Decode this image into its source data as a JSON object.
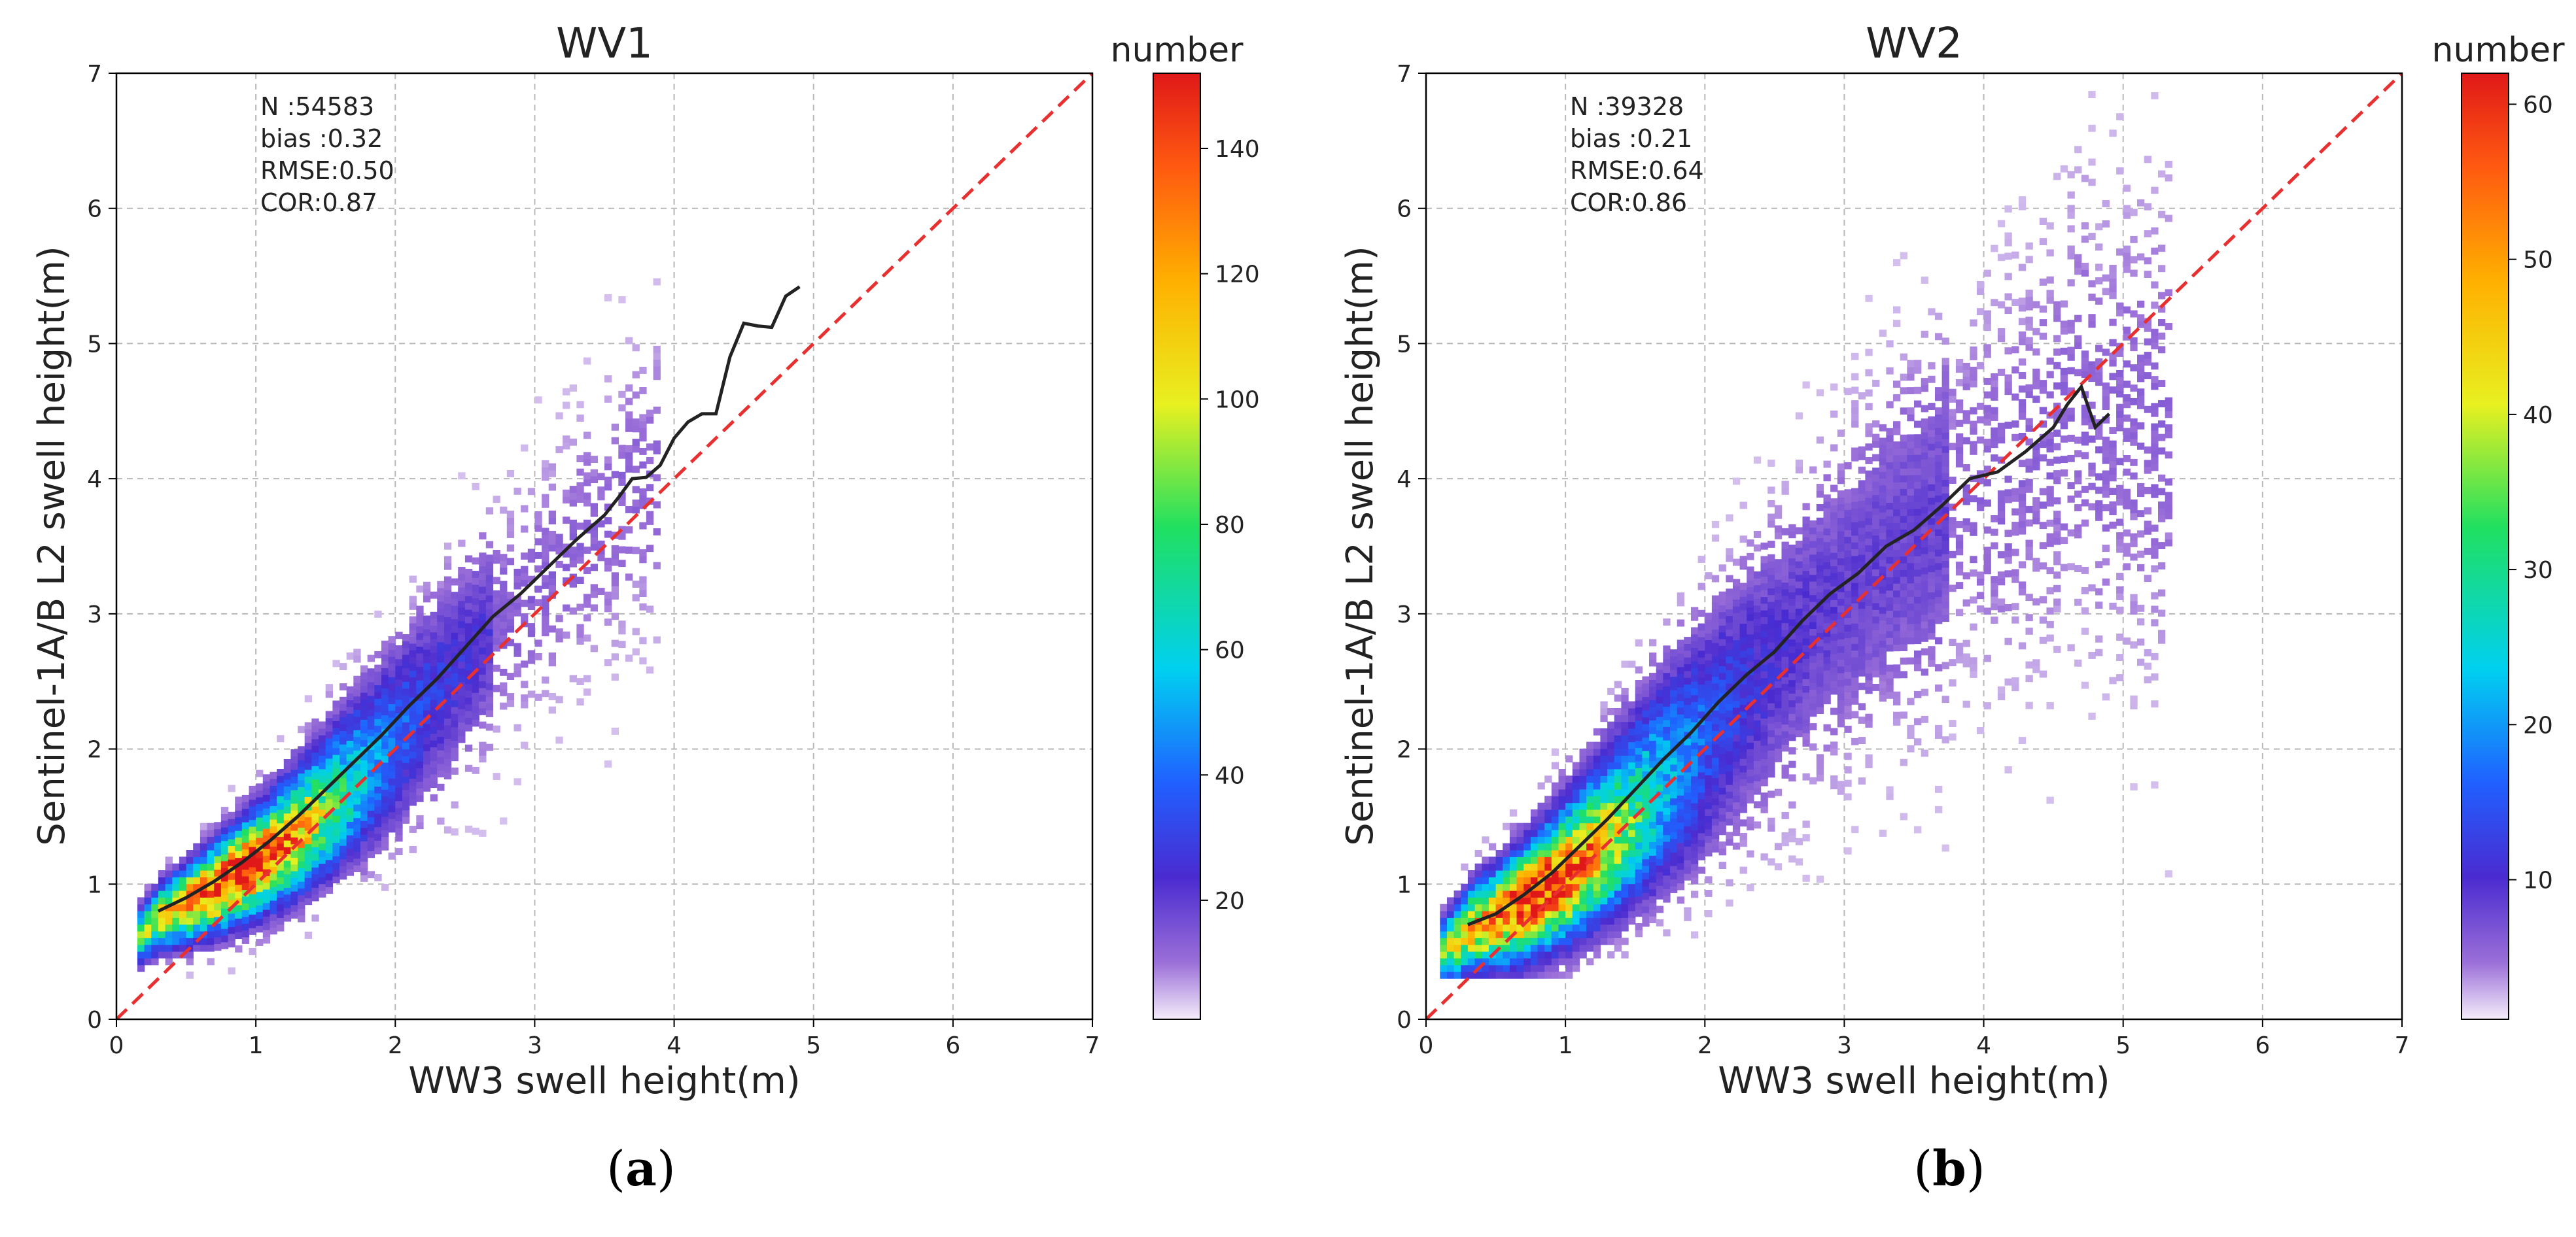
{
  "chart_data": [
    {
      "id": "a",
      "type": "heatmap",
      "title": "WV1",
      "xlabel": "WW3 swell height(m)",
      "ylabel": "Sentinel-1A/B L2 swell height(m)",
      "xlim": [
        0,
        7
      ],
      "ylim": [
        0,
        7
      ],
      "xticks": [
        "0",
        "1",
        "2",
        "3",
        "4",
        "5",
        "6",
        "7"
      ],
      "yticks": [
        "0",
        "1",
        "2",
        "3",
        "4",
        "5",
        "6",
        "7"
      ],
      "grid": true,
      "stats": [
        "N :54583",
        "bias :0.32",
        "RMSE:0.50",
        "COR:0.87"
      ],
      "colorbar": {
        "label": "number",
        "vmin": 1,
        "vmax": 152,
        "ticks": [
          20,
          40,
          60,
          80,
          100,
          120,
          140
        ],
        "tick_labels": [
          "20",
          "40",
          "60",
          "80",
          "100",
          "120",
          "140"
        ]
      },
      "identity_line": {
        "x": [
          0,
          7
        ],
        "y": [
          0,
          7
        ],
        "style": "red-dashed"
      },
      "density_model": {
        "x_range": [
          0.15,
          3.85
        ],
        "spread_base": 0.1,
        "spread_slope": 0.14,
        "peak_x": 0.85,
        "peak_y": 1.08,
        "peak_value": 150
      },
      "mean_curve": {
        "x": [
          0.3,
          0.5,
          0.7,
          0.9,
          1.1,
          1.3,
          1.5,
          1.7,
          1.9,
          2.1,
          2.3,
          2.5,
          2.7,
          2.9,
          3.1,
          3.3,
          3.5,
          3.6,
          3.7,
          3.8,
          3.9,
          4.0,
          4.1,
          4.2,
          4.3,
          4.4,
          4.5,
          4.6,
          4.7,
          4.8,
          4.9
        ],
        "y": [
          0.8,
          0.9,
          1.02,
          1.16,
          1.32,
          1.5,
          1.7,
          1.9,
          2.1,
          2.32,
          2.52,
          2.75,
          2.98,
          3.15,
          3.35,
          3.55,
          3.73,
          3.86,
          4.0,
          4.01,
          4.1,
          4.3,
          4.42,
          4.48,
          4.48,
          4.9,
          5.15,
          5.13,
          5.12,
          5.35,
          5.42
        ]
      }
    },
    {
      "id": "b",
      "type": "heatmap",
      "title": "WV2",
      "xlabel": "WW3 swell height(m)",
      "ylabel": "Sentinel-1A/B L2 swell height(m)",
      "xlim": [
        0,
        7
      ],
      "ylim": [
        0,
        7
      ],
      "xticks": [
        "0",
        "1",
        "2",
        "3",
        "4",
        "5",
        "6",
        "7"
      ],
      "yticks": [
        "0",
        "1",
        "2",
        "3",
        "4",
        "5",
        "6",
        "7"
      ],
      "grid": true,
      "stats": [
        "N :39328",
        "bias :0.21",
        "RMSE:0.64",
        "COR:0.86"
      ],
      "colorbar": {
        "label": "number",
        "vmin": 1,
        "vmax": 62,
        "ticks": [
          10,
          20,
          30,
          40,
          50,
          60
        ],
        "tick_labels": [
          "10",
          "20",
          "30",
          "40",
          "50",
          "60"
        ]
      },
      "identity_line": {
        "x": [
          0,
          7
        ],
        "y": [
          0,
          7
        ],
        "style": "red-dashed"
      },
      "density_model": {
        "x_range": [
          0.1,
          5.3
        ],
        "spread_base": 0.14,
        "spread_slope": 0.18,
        "peak_x": 0.8,
        "peak_y": 0.95,
        "peak_value": 60
      },
      "mean_curve": {
        "x": [
          0.3,
          0.5,
          0.7,
          0.9,
          1.1,
          1.3,
          1.5,
          1.7,
          1.9,
          2.1,
          2.3,
          2.5,
          2.7,
          2.9,
          3.1,
          3.3,
          3.5,
          3.7,
          3.9,
          4.1,
          4.3,
          4.5,
          4.6,
          4.7,
          4.8,
          4.9
        ],
        "y": [
          0.7,
          0.78,
          0.92,
          1.08,
          1.28,
          1.48,
          1.7,
          1.92,
          2.12,
          2.35,
          2.55,
          2.72,
          2.95,
          3.15,
          3.3,
          3.5,
          3.62,
          3.8,
          4.0,
          4.05,
          4.2,
          4.38,
          4.55,
          4.68,
          4.38,
          4.48
        ]
      }
    }
  ],
  "captions": {
    "a": {
      "open": "(",
      "letter": "a",
      "close": ")"
    },
    "b": {
      "open": "(",
      "letter": "b",
      "close": ")"
    }
  }
}
